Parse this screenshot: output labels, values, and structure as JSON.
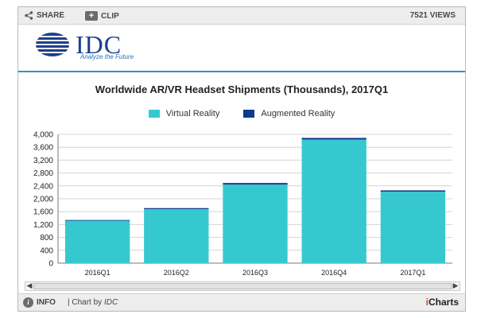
{
  "toolbar": {
    "share_label": "SHARE",
    "clip_label": "CLIP",
    "views_label": "7521 VIEWS"
  },
  "brand": {
    "logo_text": "IDC",
    "tagline": "Analyze the Future"
  },
  "footer": {
    "info_label": "INFO",
    "credit_prefix": "| Chart by",
    "credit_source": "IDC",
    "icharts_prefix": "i",
    "icharts_suffix": "Charts"
  },
  "colors": {
    "vr": "#36c8cf",
    "ar": "#0d3a8a",
    "grid": "#d4d4d4",
    "axis": "#7a7a7a"
  },
  "chart_data": {
    "type": "bar",
    "stacked": true,
    "title": "Worldwide AR/VR Headset Shipments (Thousands), 2017Q1",
    "categories": [
      "2016Q1",
      "2016Q2",
      "2016Q3",
      "2016Q4",
      "2017Q1"
    ],
    "series": [
      {
        "name": "Virtual Reality",
        "values": [
          1320,
          1680,
          2440,
          3840,
          2220
        ]
      },
      {
        "name": "Augmented Reality",
        "values": [
          20,
          30,
          50,
          50,
          40
        ]
      }
    ],
    "yticks": [
      "0",
      "400",
      "800",
      "1,200",
      "1,600",
      "2,000",
      "2,400",
      "2,800",
      "3,200",
      "3,600",
      "4,000"
    ],
    "ylim": [
      0,
      4000
    ],
    "grid": true,
    "legend": "top-center"
  }
}
